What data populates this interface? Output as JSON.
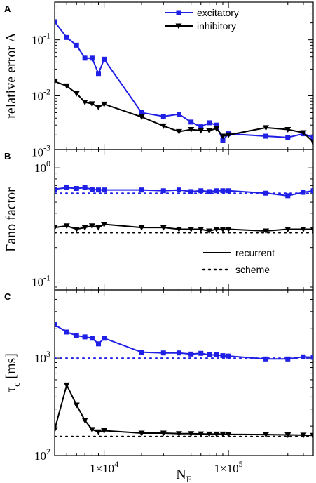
{
  "chart_data": {
    "type": "line",
    "xscale": "log",
    "xlabel": "N",
    "xlabel_sub": "E",
    "xlim": [
      4000,
      480000
    ],
    "xticks": [
      {
        "value": 10000,
        "label_base": "1×10",
        "label_exp": "4"
      },
      {
        "value": 100000,
        "label_base": "1×10",
        "label_exp": "5"
      }
    ],
    "panels": [
      {
        "id": "A",
        "letter": "A",
        "ylabel": "relative error Δ",
        "yscale": "log",
        "ylim": [
          0.0011,
          0.47
        ],
        "yticks": [
          {
            "value": 0.1,
            "base": "10",
            "exp": "-1"
          },
          {
            "value": 0.01,
            "base": "10",
            "exp": "-2"
          },
          {
            "value": 0.001,
            "base": "10",
            "exp": "-3"
          }
        ],
        "legend": [
          {
            "label": "excitatory",
            "color": "#1f1fe6",
            "marker": "square"
          },
          {
            "label": "inhibitory",
            "color": "#000000",
            "marker": "triangle-down"
          }
        ],
        "series": [
          {
            "name": "excitatory",
            "color": "#1f1fe6",
            "marker": "square",
            "line": "solid",
            "x": [
              4000,
              5000,
              6000,
              7000,
              8000,
              9000,
              10000,
              20000,
              30000,
              40000,
              50000,
              60000,
              70000,
              80000,
              90000,
              100000,
              200000,
              300000,
              400000,
              480000
            ],
            "y": [
              0.21,
              0.11,
              0.08,
              0.047,
              0.047,
              0.025,
              0.045,
              0.005,
              0.0043,
              0.0047,
              0.0034,
              0.0028,
              0.0033,
              0.003,
              0.0016,
              0.0021,
              0.0019,
              0.0018,
              0.0021,
              0.0018
            ]
          },
          {
            "name": "inhibitory",
            "color": "#000000",
            "marker": "triangle-down",
            "line": "solid",
            "x": [
              4000,
              5000,
              6000,
              7000,
              8000,
              9000,
              10000,
              20000,
              30000,
              40000,
              50000,
              60000,
              70000,
              80000,
              90000,
              100000,
              200000,
              300000,
              400000,
              480000
            ],
            "y": [
              0.018,
              0.015,
              0.011,
              0.0077,
              0.0072,
              0.0063,
              0.0071,
              0.0042,
              0.0029,
              0.0023,
              0.0025,
              0.0024,
              0.0024,
              0.0026,
              0.0019,
              0.002,
              0.0027,
              0.0025,
              0.0022,
              0.0015
            ]
          }
        ]
      },
      {
        "id": "B",
        "letter": "B",
        "ylabel": "Fano factor",
        "yscale": "log",
        "ylim": [
          0.085,
          1.45
        ],
        "yticks": [
          {
            "value": 1.0,
            "base": "10",
            "exp": "0"
          },
          {
            "value": 0.1,
            "base": "10",
            "exp": "-1"
          }
        ],
        "legend": [
          {
            "label": "recurrent",
            "color": "#000000",
            "line": "solid"
          },
          {
            "label": "scheme",
            "color": "#000000",
            "line": "dotted"
          }
        ],
        "series": [
          {
            "name": "",
            "color": "#1f1fe6",
            "marker": "square",
            "line": "solid",
            "x": [
              4000,
              5000,
              6000,
              7000,
              8000,
              9000,
              10000,
              20000,
              30000,
              40000,
              50000,
              60000,
              70000,
              80000,
              90000,
              100000,
              200000,
              300000,
              400000,
              480000
            ],
            "y": [
              0.65,
              0.67,
              0.66,
              0.67,
              0.65,
              0.64,
              0.64,
              0.64,
              0.63,
              0.64,
              0.62,
              0.63,
              0.62,
              0.63,
              0.63,
              0.63,
              0.6,
              0.57,
              0.61,
              0.63
            ]
          },
          {
            "name": "",
            "color": "#1f1fe6",
            "marker": "none",
            "line": "dotted",
            "x": [
              4000,
              480000
            ],
            "y": [
              0.6,
              0.6
            ]
          },
          {
            "name": "",
            "color": "#000000",
            "marker": "triangle-down",
            "line": "solid",
            "x": [
              4000,
              5000,
              6000,
              7000,
              8000,
              9000,
              10000,
              20000,
              30000,
              40000,
              50000,
              60000,
              70000,
              80000,
              90000,
              100000,
              200000,
              300000,
              400000,
              480000
            ],
            "y": [
              0.3,
              0.31,
              0.29,
              0.3,
              0.31,
              0.3,
              0.32,
              0.3,
              0.3,
              0.29,
              0.29,
              0.29,
              0.28,
              0.29,
              0.29,
              0.29,
              0.28,
              0.29,
              0.29,
              0.29
            ]
          },
          {
            "name": "",
            "color": "#000000",
            "marker": "none",
            "line": "dotted",
            "x": [
              4000,
              480000
            ],
            "y": [
              0.27,
              0.27
            ]
          }
        ]
      },
      {
        "id": "C",
        "letter": "C",
        "ylabel": "τ",
        "ylabel_sub": "c",
        "ylabel_unit": "[ms]",
        "yscale": "log",
        "ylim": [
          100,
          5000
        ],
        "yticks": [
          {
            "value": 1000,
            "base": "10",
            "exp": "3"
          },
          {
            "value": 100,
            "base": "10",
            "exp": "2"
          }
        ],
        "series": [
          {
            "name": "",
            "color": "#1f1fe6",
            "marker": "square",
            "line": "solid",
            "x": [
              4000,
              5000,
              6000,
              7000,
              8000,
              9000,
              10000,
              20000,
              30000,
              40000,
              50000,
              60000,
              70000,
              80000,
              90000,
              100000,
              200000,
              300000,
              400000,
              480000
            ],
            "y": [
              2200,
              1850,
              1700,
              1650,
              1600,
              1400,
              1600,
              1150,
              1130,
              1130,
              1100,
              1120,
              1080,
              1080,
              1060,
              1050,
              980,
              980,
              1030,
              1020
            ]
          },
          {
            "name": "",
            "color": "#1f1fe6",
            "marker": "none",
            "line": "dotted",
            "x": [
              4000,
              480000
            ],
            "y": [
              1000,
              1000
            ]
          },
          {
            "name": "",
            "color": "#000000",
            "marker": "triangle-down",
            "line": "solid",
            "x": [
              4000,
              5000,
              6000,
              7000,
              8000,
              9000,
              10000,
              20000,
              30000,
              40000,
              50000,
              60000,
              70000,
              80000,
              90000,
              100000,
              200000,
              300000,
              400000,
              480000
            ],
            "y": [
              185,
              530,
              330,
              230,
              185,
              175,
              180,
              170,
              170,
              168,
              168,
              167,
              166,
              166,
              166,
              165,
              164,
              163,
              162,
              161
            ]
          },
          {
            "name": "",
            "color": "#000000",
            "marker": "none",
            "line": "dotted",
            "x": [
              4000,
              480000
            ],
            "y": [
              157,
              157
            ]
          }
        ]
      }
    ]
  }
}
